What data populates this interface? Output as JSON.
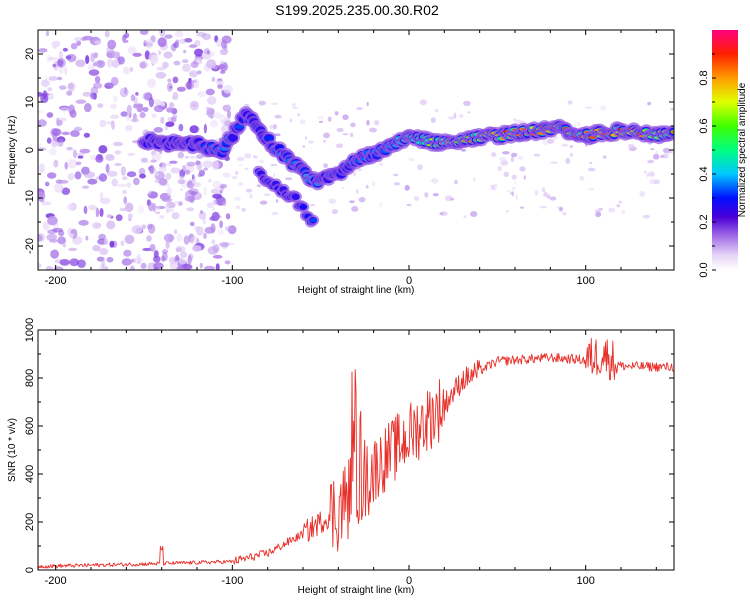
{
  "title": "S199.2025.235.00.30.R02",
  "chart_data": [
    {
      "type": "heatmap",
      "name": "spectrogram",
      "xlabel": "Height of straight line (km)",
      "ylabel": "Frequency (Hz)",
      "xlim": [
        -210,
        150
      ],
      "ylim": [
        -25,
        25
      ],
      "xticks": [
        -200,
        -100,
        0,
        100
      ],
      "yticks": [
        -20,
        -10,
        0,
        10,
        20
      ],
      "colorbar": {
        "label": "Normalized spectral amplitude",
        "range": [
          0,
          1
        ],
        "ticks": [
          "0.0",
          "0.2",
          "0.4",
          "0.6",
          "0.8"
        ],
        "tick_values": [
          0,
          0.2,
          0.4,
          0.6,
          0.8
        ]
      },
      "noise_region": {
        "x_range": [
          -210,
          -100
        ],
        "y_range": [
          -25,
          25
        ],
        "amplitude": 0.1
      },
      "ridge": [
        {
          "x": -150,
          "y": 2,
          "amp": 0.25
        },
        {
          "x": -120,
          "y": 1,
          "amp": 0.3
        },
        {
          "x": -105,
          "y": 0,
          "amp": 0.35
        },
        {
          "x": -92,
          "y": 8,
          "amp": 0.3
        },
        {
          "x": -80,
          "y": 2,
          "amp": 0.35
        },
        {
          "x": -65,
          "y": -3,
          "amp": 0.35
        },
        {
          "x": -52,
          "y": -7,
          "amp": 0.4
        },
        {
          "x": -40,
          "y": -5,
          "amp": 0.3
        },
        {
          "x": -30,
          "y": -2,
          "amp": 0.35
        },
        {
          "x": -15,
          "y": 0,
          "amp": 0.4
        },
        {
          "x": 0,
          "y": 3,
          "amp": 0.45
        },
        {
          "x": 15,
          "y": 1.5,
          "amp": 0.7
        },
        {
          "x": 40,
          "y": 2.5,
          "amp": 0.85
        },
        {
          "x": 60,
          "y": 3.5,
          "amp": 0.9
        },
        {
          "x": 85,
          "y": 4.5,
          "amp": 0.95
        },
        {
          "x": 100,
          "y": 3,
          "amp": 0.85
        },
        {
          "x": 120,
          "y": 4,
          "amp": 0.9
        },
        {
          "x": 150,
          "y": 3,
          "amp": 0.8
        }
      ],
      "branch": [
        {
          "x": -85,
          "y": -5,
          "amp": 0.3
        },
        {
          "x": -65,
          "y": -10,
          "amp": 0.3
        },
        {
          "x": -53,
          "y": -16,
          "amp": 0.35
        }
      ]
    },
    {
      "type": "line",
      "name": "snr",
      "xlabel": "Height of straight line (km)",
      "ylabel": "SNR (10 * v/v)",
      "xlim": [
        -210,
        150
      ],
      "ylim": [
        0,
        1000
      ],
      "xticks": [
        -200,
        -100,
        0,
        100
      ],
      "yticks": [
        0,
        200,
        400,
        600,
        800,
        1000
      ],
      "color": "#e8302a",
      "trend": [
        {
          "x": -210,
          "y": 15
        },
        {
          "x": -150,
          "y": 25
        },
        {
          "x": -100,
          "y": 35
        },
        {
          "x": -80,
          "y": 70
        },
        {
          "x": -60,
          "y": 150
        },
        {
          "x": -40,
          "y": 250
        },
        {
          "x": -30,
          "y": 340
        },
        {
          "x": -20,
          "y": 420
        },
        {
          "x": 0,
          "y": 560
        },
        {
          "x": 20,
          "y": 690
        },
        {
          "x": 30,
          "y": 790
        },
        {
          "x": 50,
          "y": 870
        },
        {
          "x": 80,
          "y": 885
        },
        {
          "x": 100,
          "y": 875
        },
        {
          "x": 110,
          "y": 900
        },
        {
          "x": 120,
          "y": 850
        },
        {
          "x": 150,
          "y": 845
        }
      ]
    }
  ]
}
